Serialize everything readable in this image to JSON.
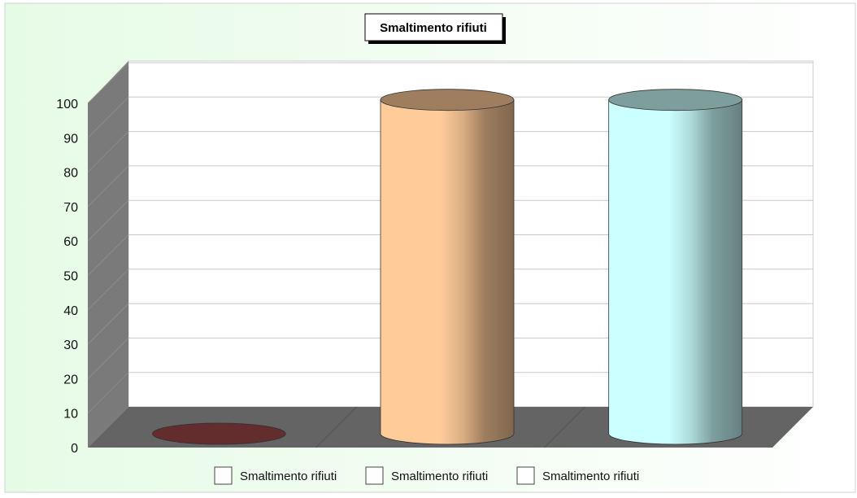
{
  "chart_data": {
    "type": "bar",
    "style": "3d-cylinder",
    "title": "Smaltimento rifiuti",
    "categories": [
      "",
      "",
      ""
    ],
    "series": [
      {
        "name": "Smaltimento rifiuti",
        "value": 0,
        "color": "#a04848"
      },
      {
        "name": "Smaltimento rifiuti",
        "value": 97,
        "color": "#ffcc99"
      },
      {
        "name": "Smaltimento rifiuti",
        "value": 97,
        "color": "#ccffff"
      }
    ],
    "ylim": [
      0,
      100
    ],
    "yticks": [
      0,
      10,
      20,
      30,
      40,
      50,
      60,
      70,
      80,
      90,
      100
    ],
    "grid": true,
    "legend_position": "bottom",
    "colors": {
      "background_left": "#e6fbe6",
      "background_right": "#ffffff",
      "plot_back": "#ffffff",
      "floor": "#646464",
      "side_wall": "#7a7a7a",
      "gridline": "#c8c8c8"
    }
  }
}
